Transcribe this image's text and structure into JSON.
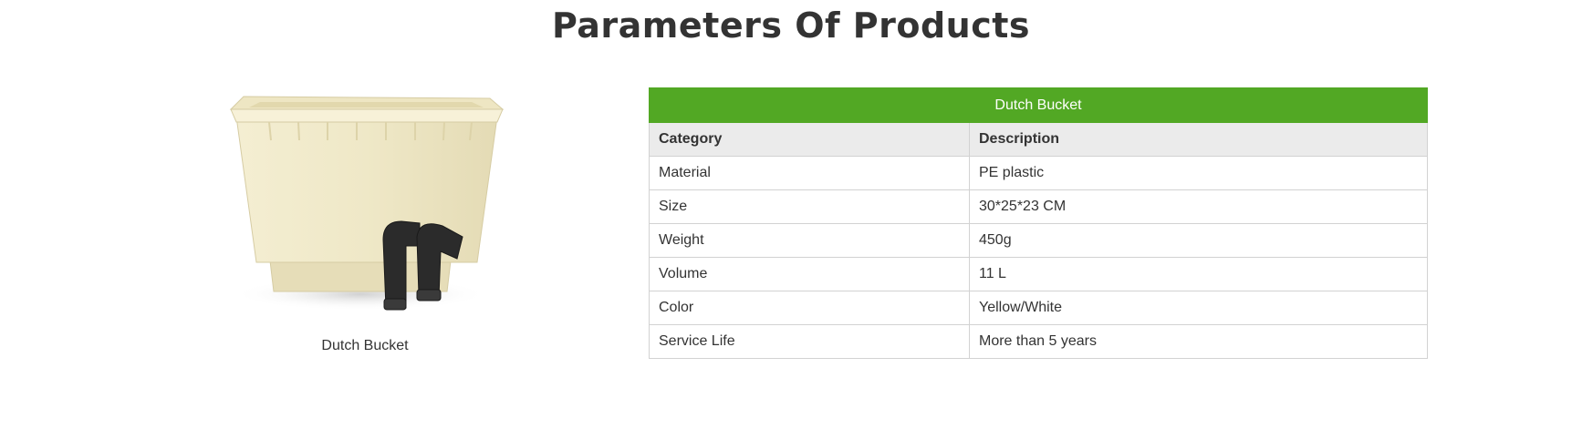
{
  "page": {
    "title": "Parameters Of Products"
  },
  "product": {
    "caption": "Dutch Bucket",
    "image_description_icon": "dutch-bucket-image"
  },
  "table": {
    "title": "Dutch Bucket",
    "headers": [
      "Category",
      "Description"
    ],
    "rows": [
      [
        "Material",
        "PE plastic"
      ],
      [
        "Size",
        "30*25*23 CM"
      ],
      [
        "Weight",
        "450g"
      ],
      [
        "Volume",
        "11 L"
      ],
      [
        "Color",
        "Yellow/White"
      ],
      [
        "Service Life",
        "More than 5 years"
      ]
    ]
  },
  "colors": {
    "accent": "#52a824",
    "header_bg": "#ebebeb",
    "border": "#d2d2d2",
    "text": "#333333"
  }
}
